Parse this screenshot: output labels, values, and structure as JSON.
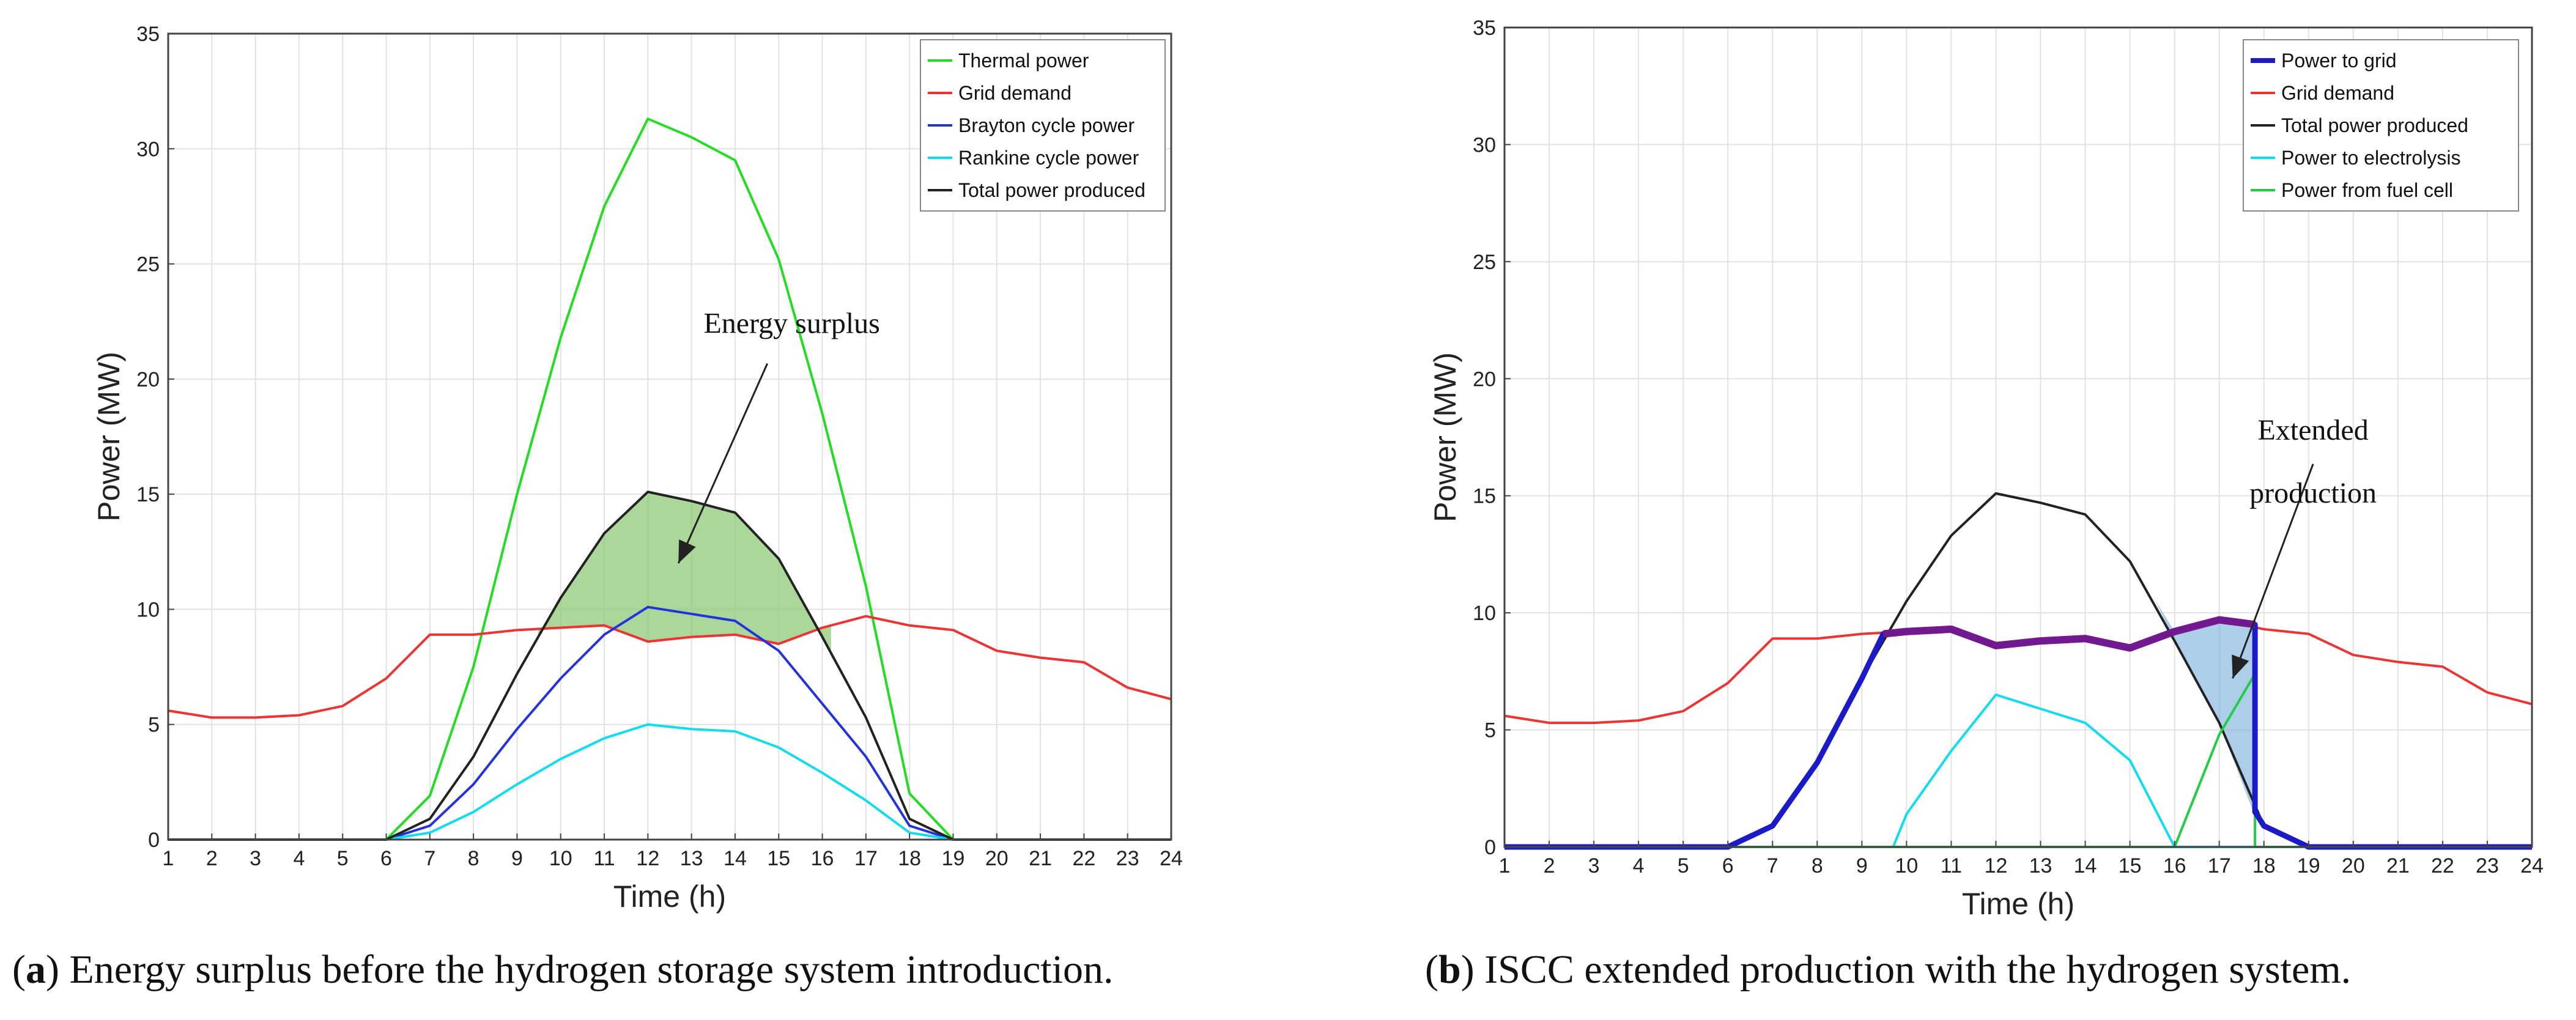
{
  "chart_data": [
    {
      "id": "a",
      "type": "line",
      "xlabel": "Time (h)",
      "ylabel": "Power (MW)",
      "xlim": [
        1,
        24
      ],
      "ylim": [
        0,
        35
      ],
      "xticks": [
        1,
        2,
        3,
        4,
        5,
        6,
        7,
        8,
        9,
        10,
        11,
        12,
        13,
        14,
        15,
        16,
        17,
        18,
        19,
        20,
        21,
        22,
        23,
        24
      ],
      "yticks": [
        0,
        5,
        10,
        15,
        20,
        25,
        30,
        35
      ],
      "grid": true,
      "legend_position": "top-right",
      "series": [
        {
          "name": "Thermal power",
          "color": "#22dd22",
          "width": 4,
          "x": [
            1,
            2,
            3,
            4,
            5,
            6,
            7,
            8,
            9,
            10,
            11,
            12,
            13,
            14,
            15,
            16,
            17,
            18,
            19,
            20,
            21,
            22,
            23,
            24
          ],
          "y": [
            0,
            0,
            0,
            0,
            0,
            0,
            1.9,
            7.5,
            15,
            21.8,
            27.5,
            31.3,
            30.5,
            29.5,
            25.2,
            18.5,
            11,
            2,
            0,
            0,
            0,
            0,
            0,
            0
          ]
        },
        {
          "name": "Grid demand",
          "color": "#ee3333",
          "width": 4,
          "x": [
            1,
            2,
            3,
            4,
            5,
            6,
            7,
            8,
            9,
            10,
            11,
            12,
            13,
            14,
            15,
            16,
            17,
            18,
            19,
            20,
            21,
            22,
            23,
            24
          ],
          "y": [
            5.6,
            5.3,
            5.3,
            5.4,
            5.8,
            7.0,
            8.9,
            8.9,
            9.1,
            9.2,
            9.3,
            8.6,
            8.8,
            8.9,
            8.5,
            9.2,
            9.7,
            9.3,
            9.1,
            8.2,
            7.9,
            7.7,
            6.6,
            6.1
          ]
        },
        {
          "name": "Brayton cycle power",
          "color": "#2233dd",
          "width": 4,
          "x": [
            1,
            2,
            3,
            4,
            5,
            6,
            7,
            8,
            9,
            10,
            11,
            12,
            13,
            14,
            15,
            16,
            17,
            18,
            19,
            20,
            21,
            22,
            23,
            24
          ],
          "y": [
            0,
            0,
            0,
            0,
            0,
            0,
            0.6,
            2.4,
            4.8,
            7.0,
            8.9,
            10.1,
            9.8,
            9.5,
            8.2,
            5.9,
            3.6,
            0.6,
            0,
            0,
            0,
            0,
            0,
            0
          ]
        },
        {
          "name": "Rankine cycle power",
          "color": "#11ddee",
          "width": 4,
          "x": [
            1,
            2,
            3,
            4,
            5,
            6,
            7,
            8,
            9,
            10,
            11,
            12,
            13,
            14,
            15,
            16,
            17,
            18,
            19,
            20,
            21,
            22,
            23,
            24
          ],
          "y": [
            0,
            0,
            0,
            0,
            0,
            0,
            0.3,
            1.2,
            2.4,
            3.5,
            4.4,
            5.0,
            4.8,
            4.7,
            4.0,
            2.9,
            1.7,
            0.3,
            0,
            0,
            0,
            0,
            0,
            0
          ]
        },
        {
          "name": "Total power produced",
          "color": "#222222",
          "width": 4,
          "x": [
            1,
            2,
            3,
            4,
            5,
            6,
            7,
            8,
            9,
            10,
            11,
            12,
            13,
            14,
            15,
            16,
            17,
            18,
            19,
            20,
            21,
            22,
            23,
            24
          ],
          "y": [
            0,
            0,
            0,
            0,
            0,
            0,
            0.9,
            3.6,
            7.2,
            10.5,
            13.3,
            15.1,
            14.7,
            14.2,
            12.2,
            8.8,
            5.3,
            0.9,
            0,
            0,
            0,
            0,
            0,
            0
          ]
        }
      ],
      "fill_region": {
        "color": "#8fca7a",
        "opacity": 0.75,
        "x": [
          9.48,
          16.2
        ],
        "upper": "Total power produced",
        "lower": "Grid demand"
      },
      "annotations": [
        {
          "text": "Energy surplus",
          "at": [
            15.3,
            22
          ],
          "arrow_to": [
            12.7,
            12
          ]
        }
      ]
    },
    {
      "id": "b",
      "type": "line",
      "xlabel": "Time (h)",
      "ylabel": "Power (MW)",
      "xlim": [
        1,
        24
      ],
      "ylim": [
        0,
        35
      ],
      "xticks": [
        1,
        2,
        3,
        4,
        5,
        6,
        7,
        8,
        9,
        10,
        11,
        12,
        13,
        14,
        15,
        16,
        17,
        18,
        19,
        20,
        21,
        22,
        23,
        24
      ],
      "yticks": [
        0,
        5,
        10,
        15,
        20,
        25,
        30,
        35
      ],
      "grid": true,
      "legend_position": "top-right",
      "series": [
        {
          "name": "Grid demand",
          "color": "#ee3333",
          "width": 4,
          "x": [
            1,
            2,
            3,
            4,
            5,
            6,
            7,
            8,
            9,
            10,
            11,
            12,
            13,
            14,
            15,
            16,
            17,
            18,
            19,
            20,
            21,
            22,
            23,
            24
          ],
          "y": [
            5.6,
            5.3,
            5.3,
            5.4,
            5.8,
            7.0,
            8.9,
            8.9,
            9.1,
            9.2,
            9.3,
            8.6,
            8.8,
            8.9,
            8.5,
            9.2,
            9.7,
            9.3,
            9.1,
            8.2,
            7.9,
            7.7,
            6.6,
            6.1
          ]
        },
        {
          "name": "Total power produced",
          "color": "#222222",
          "width": 4,
          "x": [
            1,
            2,
            3,
            4,
            5,
            6,
            7,
            8,
            9,
            10,
            11,
            12,
            13,
            14,
            15,
            16,
            17,
            18,
            19,
            20,
            21,
            22,
            23,
            24
          ],
          "y": [
            0,
            0,
            0,
            0,
            0,
            0,
            0.9,
            3.6,
            7.2,
            10.5,
            13.3,
            15.1,
            14.7,
            14.2,
            12.2,
            8.8,
            5.3,
            0.9,
            0,
            0,
            0,
            0,
            0,
            0
          ]
        },
        {
          "name": "Power to electrolysis",
          "color": "#11ddee",
          "width": 4,
          "x": [
            1,
            2,
            3,
            4,
            5,
            6,
            7,
            8,
            9,
            9.7,
            10,
            11,
            12,
            13,
            14,
            15,
            16,
            17,
            18,
            19,
            20,
            21,
            22,
            23,
            24
          ],
          "y": [
            0,
            0,
            0,
            0,
            0,
            0,
            0,
            0,
            0,
            0,
            1.4,
            4.1,
            6.5,
            5.9,
            5.3,
            3.7,
            0,
            0,
            0,
            0,
            0,
            0,
            0,
            0,
            0
          ]
        },
        {
          "name": "Power from fuel cell",
          "color": "#22cc44",
          "width": 4,
          "x": [
            1,
            2,
            3,
            4,
            5,
            6,
            7,
            8,
            9,
            10,
            11,
            12,
            13,
            14,
            15,
            16,
            17,
            17.8,
            17.8,
            18,
            19,
            20,
            21,
            22,
            23,
            24
          ],
          "y": [
            0,
            0,
            0,
            0,
            0,
            0,
            0,
            0,
            0,
            0,
            0,
            0,
            0,
            0,
            0,
            0,
            4.8,
            7.4,
            0,
            0,
            0,
            0,
            0,
            0,
            0,
            0
          ]
        },
        {
          "name": "Power to grid",
          "color": "#1a1ac8",
          "width": 9,
          "x": [
            1,
            2,
            3,
            4,
            5,
            6,
            7,
            8,
            9,
            9.48,
            10,
            11,
            12,
            13,
            14,
            15,
            16,
            17,
            17.8,
            17.8,
            18,
            19,
            20,
            21,
            22,
            23,
            24
          ],
          "y": [
            0,
            0,
            0,
            0,
            0,
            0,
            0.9,
            3.6,
            7.2,
            9.1,
            9.2,
            9.3,
            8.6,
            8.8,
            8.9,
            8.5,
            9.2,
            9.7,
            9.5,
            1.5,
            0.9,
            0,
            0,
            0,
            0,
            0,
            0
          ]
        }
      ],
      "overlay_band": {
        "color": "#7a1a8a",
        "width": 12,
        "x": [
          9.48,
          10,
          11,
          12,
          13,
          14,
          15,
          16,
          17,
          17.8
        ],
        "y": [
          9.1,
          9.2,
          9.3,
          8.6,
          8.8,
          8.9,
          8.5,
          9.2,
          9.7,
          9.5
        ]
      },
      "fill_region": {
        "color": "#7fb3dc",
        "opacity": 0.65,
        "x": [
          15.55,
          16,
          17,
          17.8,
          17.8
        ],
        "y_upper": [
          10.6,
          9.2,
          9.7,
          9.5,
          1.3
        ],
        "y_lower": [
          10.6,
          8.8,
          5.3,
          1.3,
          1.3
        ]
      },
      "annotations": [
        {
          "text": "Extended",
          "at": [
            19.1,
            17.4
          ],
          "arrow_to": [
            17.3,
            7.2
          ]
        },
        {
          "text": "production",
          "at": [
            19.1,
            14.7
          ]
        }
      ],
      "legend_order": [
        "Power to grid",
        "Grid demand",
        "Total power produced",
        "Power to electrolysis",
        "Power from fuel cell"
      ]
    }
  ],
  "captions": {
    "a": {
      "label": "a",
      "text": ") Energy surplus before the hydrogen storage system introduction."
    },
    "b": {
      "label": "b",
      "text": ") ISCC extended production with the hydrogen system."
    }
  }
}
